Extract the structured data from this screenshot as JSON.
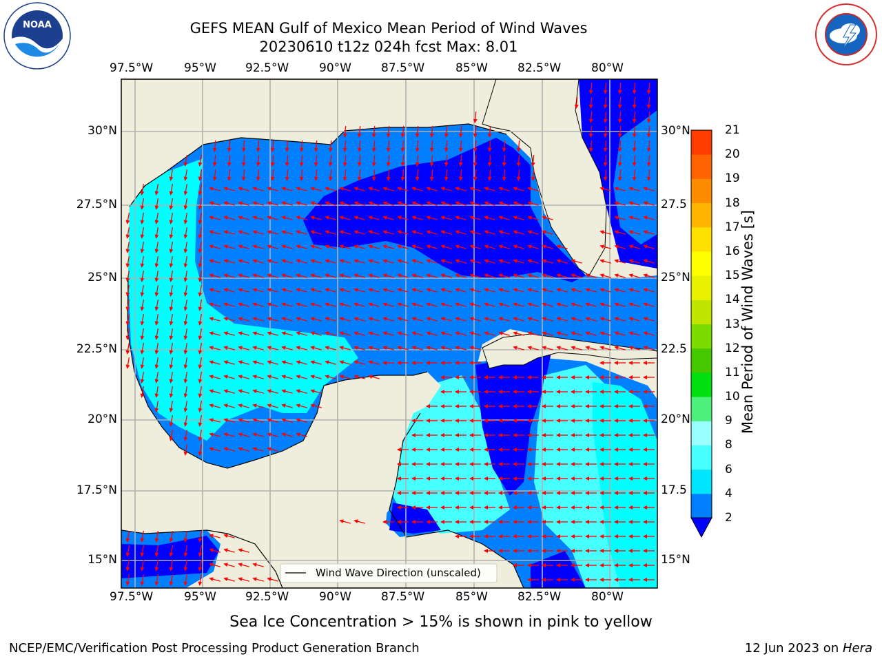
{
  "header": {
    "title_line1": "GEFS MEAN Gulf of Mexico Mean Period of Wind Waves",
    "title_line2": "20230610 t12z 024h fcst   Max: 8.01"
  },
  "logos": {
    "left": {
      "text": "NOAA",
      "ring_text": "NATIONAL OCEANIC AND ATMOSPHERIC ADMINISTRATION · U.S. DEPARTMENT OF COMMERCE"
    },
    "right": {
      "ring_text": "NATIONAL WEATHER SERVICE"
    }
  },
  "map": {
    "lon_ticks": [
      "97.5°W",
      "95°W",
      "92.5°W",
      "90°W",
      "87.5°W",
      "85°W",
      "82.5°W",
      "80°W"
    ],
    "lat_ticks_left": [
      "30°N",
      "27.5°N",
      "25°N",
      "22.5°N",
      "20°N",
      "17.5°N",
      "15°N"
    ],
    "lat_ticks_right": [
      "30°N",
      "27.5",
      "25°N",
      "22.5",
      "20°N",
      "17.5",
      "15°N"
    ],
    "legend_label": "Wind Wave Direction (unscaled)",
    "arrow_color": "#ff0000",
    "land_color": "#efeedc"
  },
  "colorbar": {
    "label": "Mean Period of Wind Waves [s]",
    "ticks": [
      "2",
      "4",
      "6",
      "8",
      "9",
      "10",
      "11",
      "12",
      "13",
      "14",
      "15",
      "16",
      "17",
      "18",
      "19",
      "20",
      "21"
    ],
    "colors": [
      "#0080ff",
      "#00e5ff",
      "#48ffff",
      "#99ffff",
      "#4cf07a",
      "#00e010",
      "#46c800",
      "#7cdc00",
      "#c0e600",
      "#e8f200",
      "#ffff00",
      "#ffe000",
      "#ffb400",
      "#ff8c00",
      "#ff6400",
      "#ff3c00",
      "#ff0000"
    ],
    "extend_color": "#0000ff"
  },
  "subtitle": "Sea Ice Concentration > 15% is shown in pink to yellow",
  "footer": {
    "left": "NCEP/EMC/Verification Post Processing Product Generation Branch",
    "right_date": "12 Jun 2023 on ",
    "right_host": "Hera"
  }
}
